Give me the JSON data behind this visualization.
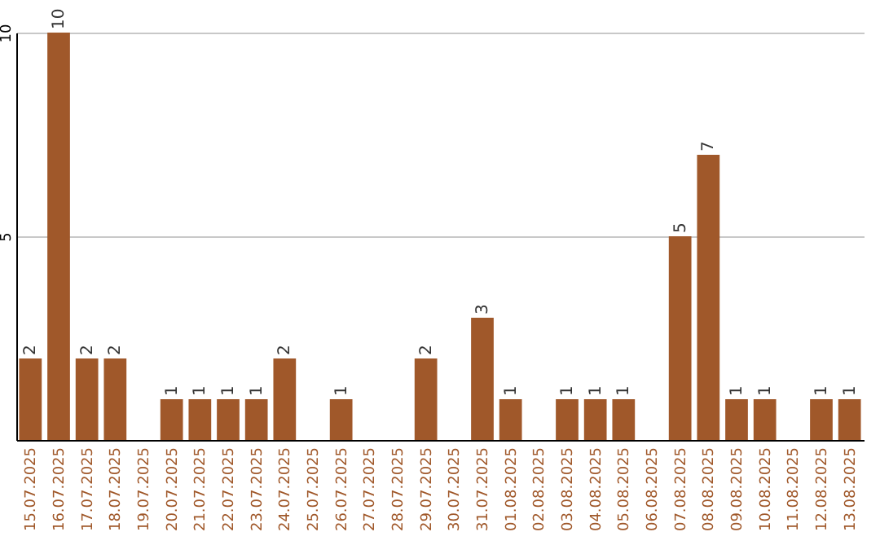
{
  "chart_data": {
    "type": "bar",
    "categories": [
      "15.07.2025",
      "16.07.2025",
      "17.07.2025",
      "18.07.2025",
      "19.07.2025",
      "20.07.2025",
      "21.07.2025",
      "22.07.2025",
      "23.07.2025",
      "24.07.2025",
      "25.07.2025",
      "26.07.2025",
      "27.07.2025",
      "28.07.2025",
      "29.07.2025",
      "30.07.2025",
      "31.07.2025",
      "01.08.2025",
      "02.08.2025",
      "03.08.2025",
      "04.08.2025",
      "05.08.2025",
      "06.08.2025",
      "07.08.2025",
      "08.08.2025",
      "09.08.2025",
      "10.08.2025",
      "11.08.2025",
      "12.08.2025",
      "13.08.2025"
    ],
    "values": [
      2,
      10,
      2,
      2,
      null,
      1,
      1,
      1,
      1,
      2,
      null,
      1,
      null,
      null,
      2,
      null,
      3,
      1,
      null,
      1,
      1,
      1,
      null,
      5,
      7,
      1,
      1,
      null,
      1,
      1
    ],
    "color": "#a0582a",
    "ylim": [
      0,
      10
    ],
    "yticks": [
      5,
      10
    ],
    "grid": "y",
    "data_labels": true
  }
}
